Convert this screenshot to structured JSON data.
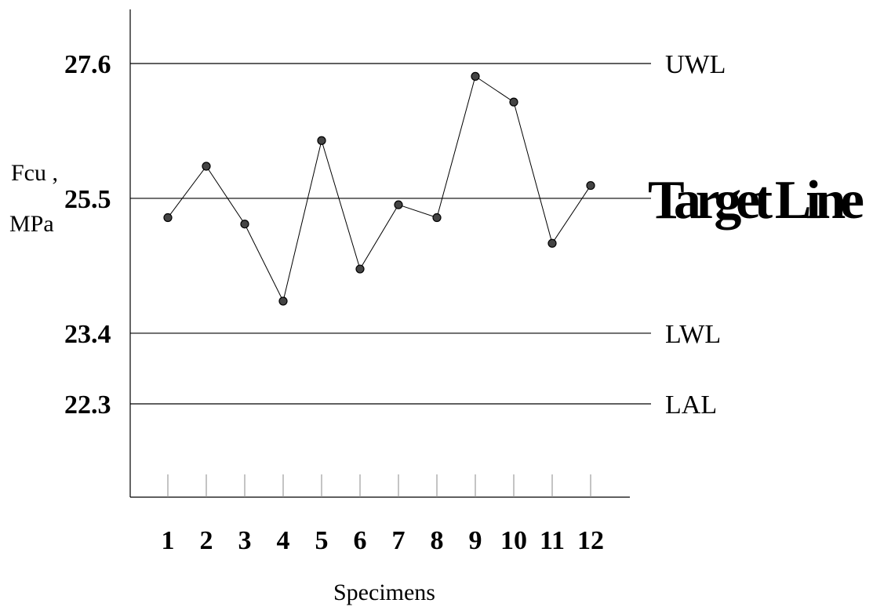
{
  "chart_data": {
    "type": "line",
    "xlabel": "Specimens",
    "ylabel_line1": "Fcu ,",
    "ylabel_line2": "MPa",
    "categories": [
      "1",
      "2",
      "3",
      "4",
      "5",
      "6",
      "7",
      "8",
      "9",
      "10",
      "11",
      "12"
    ],
    "series": [
      {
        "values": [
          25.2,
          26.0,
          25.1,
          23.9,
          26.4,
          24.4,
          25.4,
          25.2,
          27.4,
          27.0,
          24.8,
          25.7
        ]
      }
    ],
    "ylim": [
      21.0,
      28.6
    ],
    "y_ticks": [
      "27.6",
      "25.5",
      "23.4",
      "22.3"
    ],
    "reference_lines": [
      {
        "value": 27.6,
        "label": "UWL"
      },
      {
        "value": 25.5,
        "label": "Target Line"
      },
      {
        "value": 23.4,
        "label": "LWL"
      },
      {
        "value": 22.3,
        "label": "LAL"
      }
    ],
    "grid": false
  }
}
